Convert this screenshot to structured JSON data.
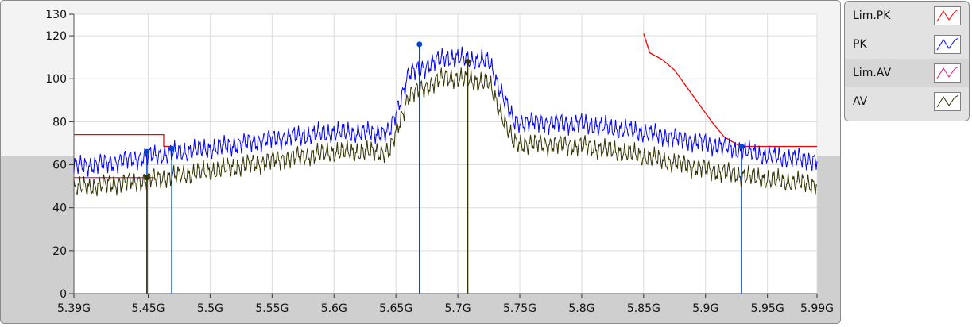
{
  "chart_data": {
    "type": "line",
    "title": "",
    "xlabel": "",
    "ylabel": "",
    "x_range": [
      5.39,
      5.99
    ],
    "y_range": [
      0,
      130
    ],
    "x_ticks": [
      5.39,
      5.45,
      5.5,
      5.55,
      5.6,
      5.65,
      5.7,
      5.75,
      5.8,
      5.85,
      5.9,
      5.95,
      5.99
    ],
    "x_tick_labels": [
      "5.39G",
      "5.45G",
      "5.5G",
      "5.55G",
      "5.6G",
      "5.65G",
      "5.7G",
      "5.75G",
      "5.8G",
      "5.85G",
      "5.9G",
      "5.95G",
      "5.99G"
    ],
    "y_ticks": [
      0,
      20,
      40,
      60,
      80,
      100,
      120,
      130
    ],
    "y_tick_labels": [
      "0",
      "20",
      "40",
      "60",
      "80",
      "100",
      "120",
      "130"
    ],
    "grid": true,
    "legend_position": "right",
    "series": [
      {
        "name": "Lim.PK",
        "color": "#ff0000",
        "style": "step",
        "segments": [
          [
            [
              5.39,
              74
            ],
            [
              5.4625,
              74
            ],
            [
              5.4625,
              68.5
            ],
            [
              5.47,
              68.5
            ]
          ],
          [
            [
              5.85,
              121
            ],
            [
              5.855,
              112
            ],
            [
              5.865,
              109
            ],
            [
              5.875,
              104
            ],
            [
              5.885,
              96
            ],
            [
              5.895,
              88
            ],
            [
              5.905,
              80
            ],
            [
              5.915,
              73
            ],
            [
              5.928,
              68.5
            ],
            [
              5.99,
              68.5
            ]
          ]
        ]
      },
      {
        "name": "PK",
        "color": "#0000ff",
        "style": "line",
        "x": [
          5.39,
          5.42,
          5.45,
          5.5,
          5.55,
          5.6,
          5.645,
          5.66,
          5.69,
          5.725,
          5.745,
          5.8,
          5.85,
          5.9,
          5.95,
          5.99
        ],
        "y": [
          59,
          61,
          64,
          67.5,
          72,
          75,
          75,
          102,
          110,
          108,
          80,
          79,
          75,
          70,
          64,
          62
        ]
      },
      {
        "name": "Lim.AV",
        "color": "#e0197d",
        "style": "step",
        "segments": [
          [
            [
              5.39,
              54
            ],
            [
              5.455,
              54
            ]
          ]
        ]
      },
      {
        "name": "AV",
        "color": "#333300",
        "style": "line",
        "x": [
          5.39,
          5.42,
          5.45,
          5.5,
          5.55,
          5.6,
          5.645,
          5.66,
          5.69,
          5.725,
          5.745,
          5.8,
          5.85,
          5.9,
          5.95,
          5.99
        ],
        "y": [
          49,
          51,
          53,
          57,
          62,
          66,
          66,
          92,
          101,
          98,
          70,
          69,
          64,
          58,
          53,
          51
        ]
      }
    ],
    "markers": [
      {
        "x": 5.449,
        "y": 66,
        "color": "#0044cc"
      },
      {
        "x": 5.469,
        "y": 67.5,
        "color": "#0044cc"
      },
      {
        "x": 5.449,
        "y": 54,
        "color": "#333300"
      },
      {
        "x": 5.669,
        "y": 116,
        "color": "#0044cc"
      },
      {
        "x": 5.708,
        "y": 108,
        "color": "#333300"
      },
      {
        "x": 5.929,
        "y": 68.5,
        "color": "#0044cc"
      }
    ]
  },
  "legend": {
    "items": [
      {
        "label": "Lim.PK",
        "color": "#ff0000"
      },
      {
        "label": "PK",
        "color": "#0000ff"
      },
      {
        "label": "Lim.AV",
        "color": "#e0197d"
      },
      {
        "label": "AV",
        "color": "#333300"
      }
    ]
  }
}
